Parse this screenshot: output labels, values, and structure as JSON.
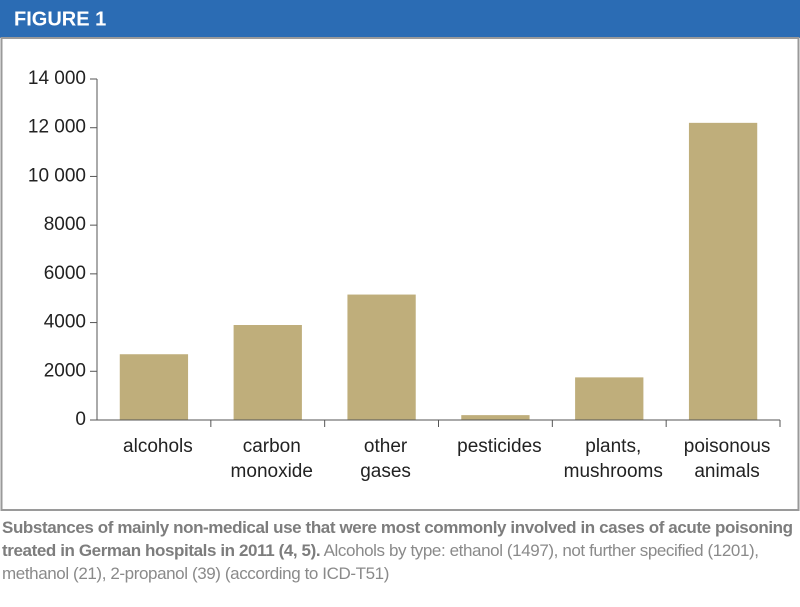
{
  "figure_label": "FIGURE 1",
  "chart_data": {
    "type": "bar",
    "categories": [
      [
        "alcohols"
      ],
      [
        "carbon",
        "monoxide"
      ],
      [
        "other",
        "gases"
      ],
      [
        "pesticides"
      ],
      [
        "plants,",
        "mushrooms"
      ],
      [
        "poisonous",
        "animals"
      ]
    ],
    "values": [
      2700,
      3900,
      5150,
      200,
      1750,
      12200
    ],
    "color": "#bfae7b",
    "ylim": [
      0,
      14000
    ],
    "yticks": [
      0,
      2000,
      4000,
      6000,
      8000,
      {
        "value": 10000,
        "label": "10 000"
      },
      {
        "value": 12000,
        "label": "12 000"
      },
      {
        "value": 14000,
        "label": "14 000"
      }
    ]
  },
  "caption": {
    "bold": "Substances of mainly non-medical use that were most commonly involved in cases of acute poisoning treated in German hospitals in 2011 (4, 5).",
    "text": "Alcohols by type: ethanol (1497), not further specified (1201), methanol (21), 2-propanol (39) (according to ICD-T51)"
  }
}
